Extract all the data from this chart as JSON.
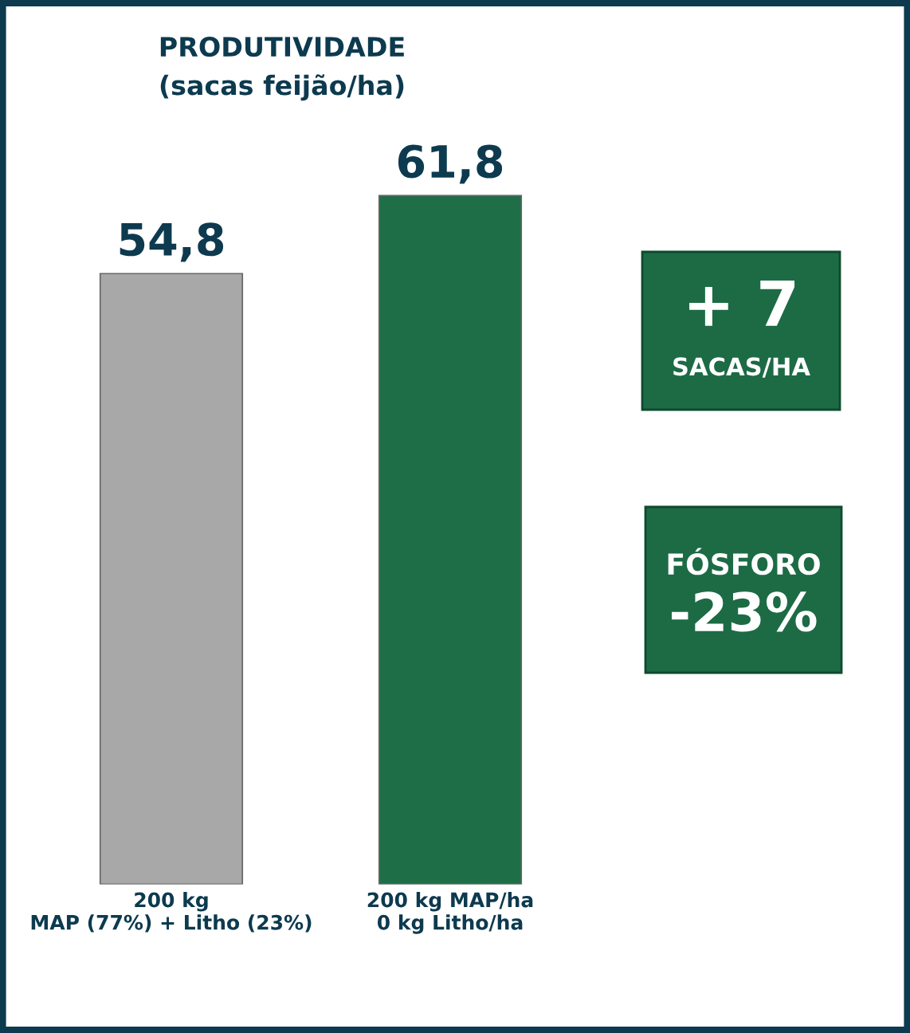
{
  "chart_data": {
    "type": "bar",
    "title": "PRODUTIVIDADE\n(sacas feijão/ha)",
    "categories": [
      "200 kg\nMAP (77%) + Litho (23%)",
      "200 kg MAP/ha\n0 kg Litho/ha"
    ],
    "values": [
      54.8,
      61.8
    ],
    "colors": [
      "#a8a8a8",
      "#1e6e47"
    ],
    "value_labels": [
      "54,8",
      "61,8"
    ],
    "tick_labels": "x",
    "grid": false,
    "legend": false,
    "annotations": [
      "+ 7",
      "SACAS/HA",
      "FÓSFORO",
      "-23%"
    ]
  }
}
